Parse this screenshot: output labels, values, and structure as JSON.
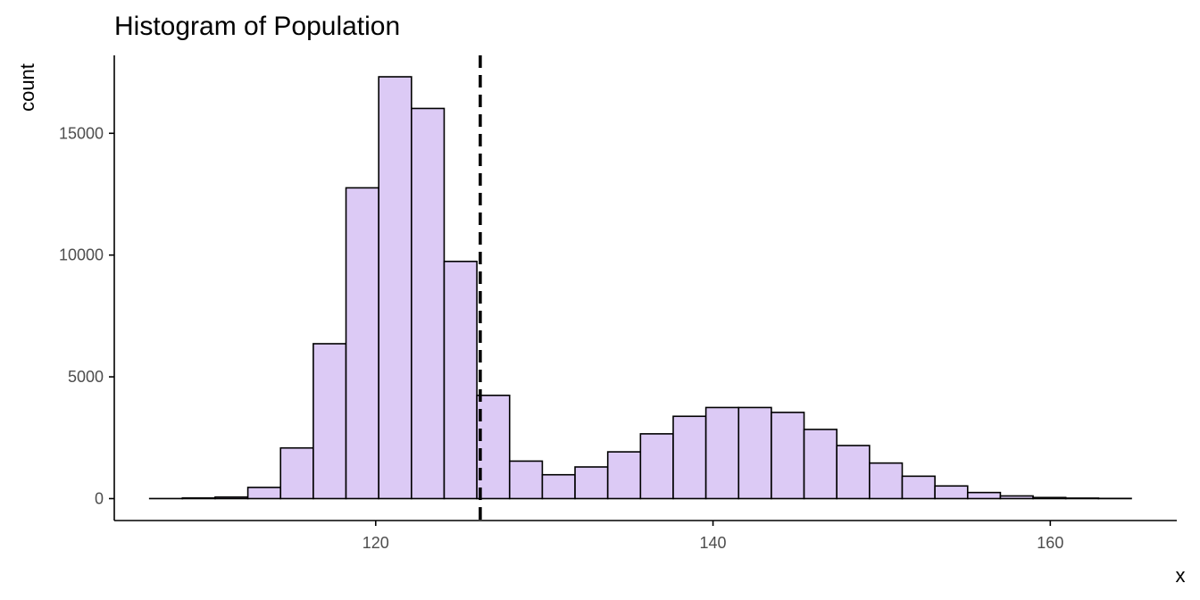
{
  "chart_data": {
    "type": "bar",
    "title": "Histogram of Population",
    "xlabel": "x",
    "ylabel": "count",
    "xlim": [
      104.5,
      167.5
    ],
    "ylim": [
      -900,
      18200
    ],
    "x_ticks": [
      120,
      140,
      160
    ],
    "y_ticks": [
      0,
      5000,
      10000,
      15000
    ],
    "bins": {
      "start": 106.6,
      "width": 1.94,
      "counts": [
        2,
        28,
        65,
        460,
        2080,
        6360,
        12760,
        17320,
        16020,
        9740,
        4240,
        1540,
        980,
        1300,
        1920,
        2660,
        3380,
        3740,
        3740,
        3540,
        2840,
        2180,
        1460,
        920,
        520,
        250,
        110,
        45,
        20,
        8
      ]
    },
    "reference_line": {
      "x": 126.2,
      "style": "dashed",
      "color": "#000000"
    },
    "colors": {
      "bar_fill": "#dccaf5",
      "bar_stroke": "#000000",
      "axis": "#000000",
      "tick_label": "#4d4d4d"
    },
    "grid": false,
    "legend": "none"
  }
}
